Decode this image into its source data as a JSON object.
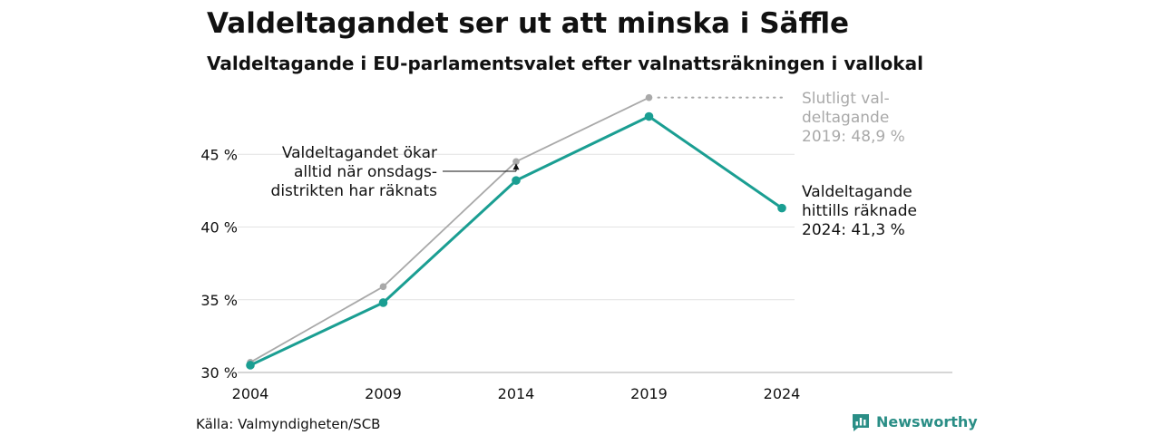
{
  "header": {
    "title": "Valdeltagandet ser ut att minska i Säffle",
    "subtitle": "Valdeltagande i EU-parlamentsvalet efter valnattsräkningen i vallokal"
  },
  "chart_data": {
    "type": "line",
    "x": [
      2004,
      2009,
      2014,
      2019,
      2024
    ],
    "x_tick_labels": [
      "2004",
      "2009",
      "2014",
      "2019",
      "2024"
    ],
    "y_tick_labels": [
      "30 %",
      "35 %",
      "40 %",
      "45 %"
    ],
    "ylim": [
      30,
      50
    ],
    "grid": true,
    "series": [
      {
        "key": "final",
        "color": "#a9a9a9",
        "x": [
          2004,
          2009,
          2014,
          2019
        ],
        "values": [
          30.7,
          35.9,
          44.5,
          48.9
        ]
      },
      {
        "key": "election_night",
        "color": "#1a9e92",
        "x": [
          2004,
          2009,
          2014,
          2019,
          2024
        ],
        "values": [
          30.5,
          34.8,
          43.2,
          47.6,
          41.3
        ]
      }
    ],
    "annotations": {
      "final_label": [
        "Slutligt val-",
        "deltagande",
        "2019: 48,9 %"
      ],
      "counted_label": [
        "Valdeltagande",
        "hittills räknade",
        "2024: 41,3 %"
      ],
      "note": [
        "Valdeltagandet ökar",
        "alltid när onsdags-",
        "distrikten har räknats"
      ]
    }
  },
  "footer": {
    "source": "Källa: Valmyndigheten/SCB",
    "logo_text": "Newsworthy",
    "logo_icon": "bar-chart-speech-bubble-icon",
    "logo_color": "#2a8e86"
  }
}
